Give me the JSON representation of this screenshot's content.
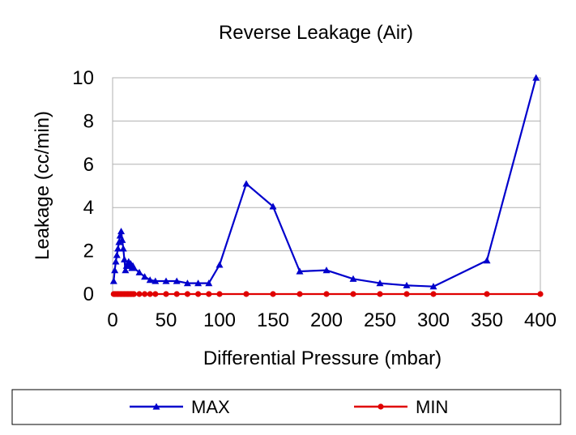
{
  "chart_data": {
    "type": "line",
    "title": "Reverse Leakage (Air)",
    "xlabel": "Differential Pressure (mbar)",
    "ylabel": "Leakage (cc/min)",
    "xlim": [
      0,
      400
    ],
    "ylim": [
      0,
      10
    ],
    "xticks": [
      0,
      50,
      100,
      150,
      200,
      250,
      300,
      350,
      400
    ],
    "yticks": [
      0,
      2,
      4,
      6,
      8,
      10
    ],
    "grid": "horizontal",
    "legend": "bottom",
    "series": [
      {
        "name": "MAX",
        "color": "#0000cc",
        "marker": "triangle",
        "x": [
          1,
          2,
          3,
          4,
          5,
          6,
          7,
          8,
          9,
          10,
          11,
          12,
          13,
          14,
          15,
          16,
          17,
          18,
          19,
          20,
          25,
          30,
          35,
          40,
          50,
          60,
          70,
          80,
          90,
          100,
          125,
          150,
          175,
          200,
          225,
          250,
          275,
          300,
          350,
          396
        ],
        "y": [
          0.6,
          1.1,
          1.5,
          1.8,
          2.1,
          2.4,
          2.7,
          2.9,
          2.5,
          2.1,
          1.6,
          1.1,
          1.3,
          1.4,
          1.5,
          1.3,
          1.4,
          1.2,
          1.3,
          1.2,
          1.0,
          0.8,
          0.65,
          0.6,
          0.6,
          0.6,
          0.5,
          0.5,
          0.5,
          1.35,
          5.1,
          4.05,
          1.05,
          1.1,
          0.7,
          0.5,
          0.4,
          0.35,
          1.55,
          10.0
        ]
      },
      {
        "name": "MIN",
        "color": "#e00000",
        "marker": "circle",
        "x": [
          1,
          2,
          3,
          4,
          5,
          6,
          7,
          8,
          9,
          10,
          11,
          12,
          13,
          14,
          15,
          16,
          17,
          18,
          19,
          20,
          25,
          30,
          35,
          40,
          50,
          60,
          70,
          80,
          90,
          100,
          125,
          150,
          175,
          200,
          225,
          250,
          275,
          300,
          350,
          400
        ],
        "y": [
          0,
          0,
          0,
          0,
          0,
          0,
          0,
          0,
          0,
          0,
          0,
          0,
          0,
          0,
          0,
          0,
          0,
          0,
          0,
          0,
          0,
          0,
          0,
          0,
          0,
          0,
          0,
          0,
          0,
          0,
          0,
          0,
          0,
          0,
          0,
          0,
          0,
          0,
          0,
          0
        ]
      }
    ]
  }
}
